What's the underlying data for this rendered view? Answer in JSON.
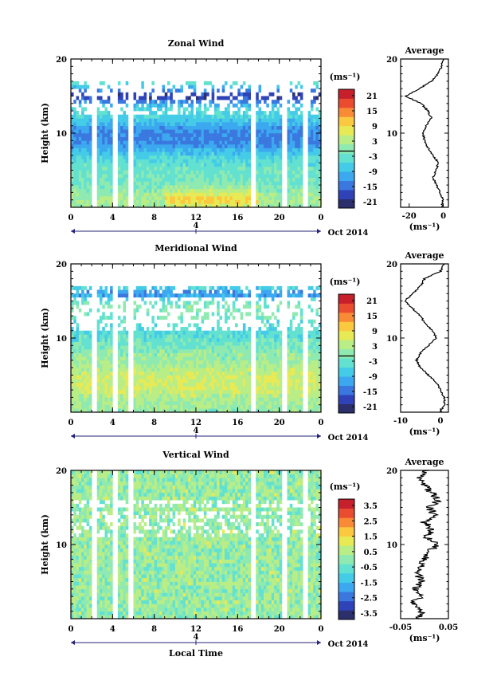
{
  "common": {
    "ylabel": "Height (km)",
    "xlabel": "Local Time",
    "date_label": "Oct 2014",
    "day_label": "4",
    "x_ticks": [
      "0",
      "4",
      "8",
      "12",
      "16",
      "20",
      "0"
    ],
    "y_ticks": [
      "20",
      "10"
    ],
    "avg_title": "Average",
    "unit": "(ms⁻¹)",
    "colormap": [
      "#2b2f6b",
      "#2f42b8",
      "#3a78df",
      "#3ba8ef",
      "#44cbe7",
      "#62e1d1",
      "#8eeab0",
      "#b9ed86",
      "#e8ea55",
      "#fbc93f",
      "#f98a36",
      "#e94c2e",
      "#c6202c"
    ]
  },
  "chart_data": [
    {
      "type": "heatmap",
      "title": "Zonal Wind",
      "x_range": [
        0,
        24
      ],
      "y_range": [
        0,
        20
      ],
      "colorbar_ticks": [
        "21",
        "15",
        "9",
        "3",
        "-3",
        "-9",
        "-15",
        "-21"
      ],
      "colorbar_range": [
        -24,
        24
      ],
      "data_gaps_hours": [
        2.3,
        4.2,
        5.8,
        17.5,
        20.5,
        22.5
      ],
      "profile": {
        "xlim": [
          -25,
          3
        ],
        "x_ticks": [
          "-20",
          "0"
        ],
        "heights": [
          0,
          1,
          2,
          3,
          4,
          5,
          6,
          7,
          8,
          9,
          10,
          11,
          12,
          13,
          14,
          15,
          16,
          17,
          18,
          19,
          20
        ],
        "values": [
          -1,
          0,
          -2,
          -4,
          -6,
          -4,
          -3,
          -6,
          -9,
          -11,
          -12,
          -10,
          -7,
          -9,
          -13,
          -22,
          -14,
          -7,
          -3,
          -1,
          0
        ]
      }
    },
    {
      "type": "heatmap",
      "title": "Meridional Wind",
      "x_range": [
        0,
        24
      ],
      "y_range": [
        0,
        20
      ],
      "colorbar_ticks": [
        "21",
        "15",
        "9",
        "3",
        "-3",
        "-9",
        "-15",
        "-21"
      ],
      "colorbar_range": [
        -24,
        24
      ],
      "data_gaps_hours": [
        2.3,
        4.2,
        5.8,
        17.5,
        20.5,
        22.5
      ],
      "profile": {
        "xlim": [
          -10,
          2
        ],
        "x_ticks": [
          "-10",
          "0"
        ],
        "heights": [
          0,
          1,
          2,
          3,
          4,
          5,
          6,
          7,
          8,
          9,
          10,
          11,
          12,
          13,
          14,
          15,
          16,
          17,
          18,
          19,
          20
        ],
        "values": [
          0,
          1,
          1,
          0,
          -1,
          -3,
          -5,
          -6,
          -5,
          -3,
          -1,
          -2,
          -4,
          -5,
          -7,
          -9,
          -7,
          -5,
          -4,
          0,
          1
        ]
      }
    },
    {
      "type": "heatmap",
      "title": "Vertical Wind",
      "x_range": [
        0,
        24
      ],
      "y_range": [
        0,
        20
      ],
      "colorbar_ticks": [
        "3.5",
        "2.5",
        "1.5",
        "0.5",
        "-0.5",
        "-1.5",
        "-2.5",
        "-3.5"
      ],
      "colorbar_range": [
        -4,
        4
      ],
      "data_gaps_hours": [
        2.3,
        4.2,
        5.8,
        17.5,
        20.5,
        22.5
      ],
      "profile": {
        "xlim": [
          -0.05,
          0.05
        ],
        "x_ticks": [
          "-0.05",
          "0.05"
        ],
        "heights": [
          0,
          1,
          2,
          3,
          4,
          5,
          6,
          7,
          8,
          9,
          10,
          11,
          12,
          13,
          14,
          15,
          16,
          17,
          18,
          19,
          20
        ],
        "values": [
          -0.015,
          -0.005,
          -0.025,
          -0.01,
          -0.02,
          -0.005,
          -0.015,
          -0.01,
          0.0,
          0.01,
          0.025,
          0.005,
          0.015,
          0.0,
          0.02,
          0.01,
          0.03,
          0.015,
          0.0,
          -0.01,
          0.005
        ]
      }
    }
  ]
}
